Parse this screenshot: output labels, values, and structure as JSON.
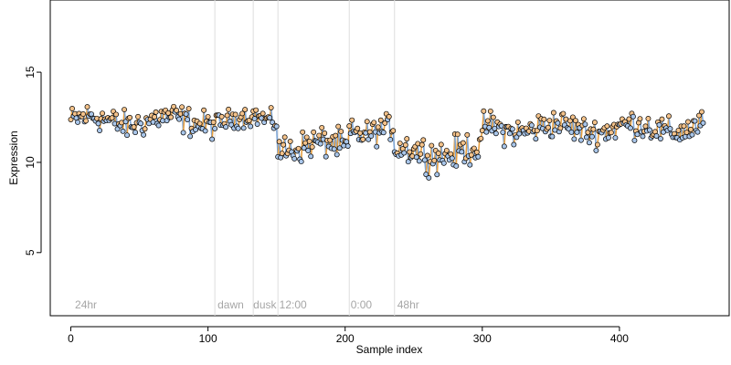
{
  "chart_data": {
    "type": "scatter",
    "xlabel": "Sample index",
    "ylabel": "Expression",
    "xlim": [
      -15,
      480
    ],
    "ylim": [
      1.5,
      19
    ],
    "x_ticks": [
      0,
      100,
      200,
      300,
      400
    ],
    "y_ticks": [
      5,
      10,
      15
    ],
    "grid": false,
    "dividers": [
      105,
      133,
      151,
      203,
      236
    ],
    "section_labels": [
      {
        "x": 3,
        "text": "24hr"
      },
      {
        "x": 107,
        "text": "dawn"
      },
      {
        "x": 133,
        "text": "dusk"
      },
      {
        "x": 152,
        "text": "12:00"
      },
      {
        "x": 204,
        "text": "0:00"
      },
      {
        "x": 238,
        "text": "48hr"
      }
    ],
    "segments": [
      {
        "start": 0,
        "end": 104,
        "level": 12.3,
        "amp": 0.55
      },
      {
        "start": 105,
        "end": 132,
        "level": 12.3,
        "amp": 0.4
      },
      {
        "start": 133,
        "end": 150,
        "level": 12.4,
        "amp": 0.4
      },
      {
        "start": 151,
        "end": 202,
        "level": 10.9,
        "amp": 0.6
      },
      {
        "start": 203,
        "end": 235,
        "level": 11.8,
        "amp": 0.5
      },
      {
        "start": 236,
        "end": 300,
        "level": 10.6,
        "amp": 0.65
      },
      {
        "start": 301,
        "end": 461,
        "level": 11.9,
        "amp": 0.55
      }
    ],
    "colors": {
      "line_up": "#e8a040",
      "line_down": "#7ea6d6",
      "marker_up": "#f4c28a",
      "marker_down": "#a9c6ea",
      "divider": "#dddddd"
    }
  }
}
